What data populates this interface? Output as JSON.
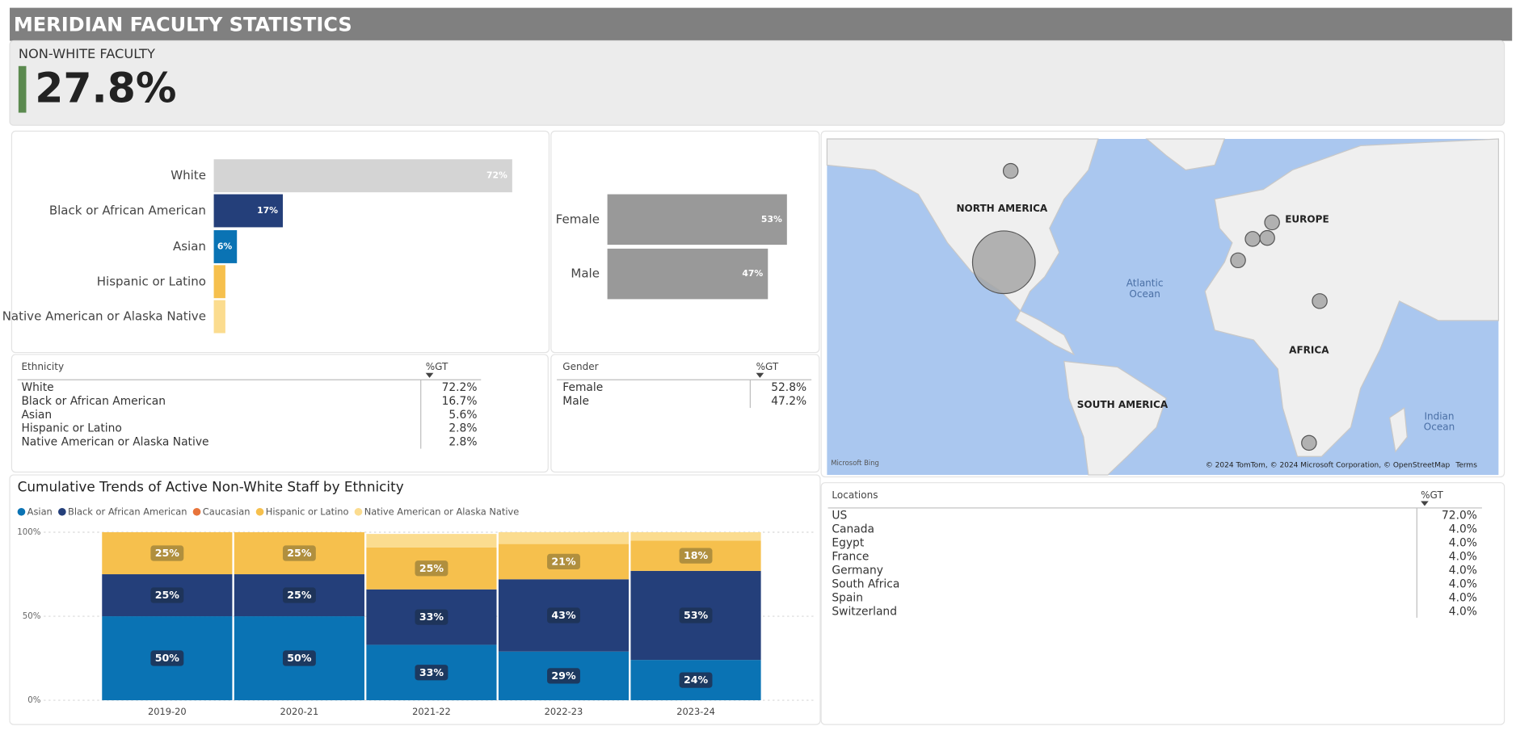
{
  "header": {
    "title": "MERIDIAN FACULTY STATISTICS"
  },
  "kpi": {
    "label": "NON-WHITE FACULTY",
    "value": "27.8%"
  },
  "chart_data": [
    {
      "type": "hbar",
      "categories": [
        "White",
        "Black or African American",
        "Asian",
        "Hispanic or Latino",
        "Native American or Alaska Native"
      ],
      "values": [
        72.2,
        16.7,
        5.6,
        2.8,
        2.8
      ],
      "value_labels": [
        "72%",
        "17%",
        "6%",
        null,
        null
      ],
      "colors": [
        "#d4d4d4",
        "#243f7a",
        "#0a73b4",
        "#f6c04d",
        "#fbdc8f"
      ],
      "xlim": [
        0,
        75
      ]
    },
    {
      "type": "hbar",
      "categories": [
        "Female",
        "Male"
      ],
      "values": [
        52.8,
        47.2
      ],
      "value_labels": [
        "53%",
        "47%"
      ],
      "colors": [
        "#999999",
        "#999999"
      ],
      "xlim": [
        0,
        55
      ]
    },
    {
      "type": "stacked-column",
      "title": "Cumulative Trends of Active Non-White Staff by Ethnicity",
      "categories": [
        "2019-20",
        "2020-21",
        "2021-22",
        "2022-23",
        "2023-24"
      ],
      "series": [
        {
          "name": "Asian",
          "color": "#0a73b4",
          "values": [
            50,
            50,
            33,
            29,
            24
          ],
          "value_labels": [
            "50%",
            "50%",
            "33%",
            "29%",
            "24%"
          ]
        },
        {
          "name": "Black or African American",
          "color": "#243f7a",
          "values": [
            25,
            25,
            33,
            43,
            53
          ],
          "value_labels": [
            "25%",
            "25%",
            "33%",
            "43%",
            "53%"
          ]
        },
        {
          "name": "Caucasian",
          "color": "#e8743b",
          "values": [
            0,
            0,
            0,
            0,
            0
          ],
          "value_labels": [
            null,
            null,
            null,
            null,
            null
          ]
        },
        {
          "name": "Hispanic or Latino",
          "color": "#f6c04d",
          "values": [
            25,
            25,
            25,
            21,
            18
          ],
          "value_labels": [
            "25%",
            "25%",
            "25%",
            "21%",
            "18%"
          ]
        },
        {
          "name": "Native American or Alaska Native",
          "color": "#fbdc8f",
          "values": [
            0,
            0,
            8,
            7,
            5
          ],
          "value_labels": [
            null,
            null,
            null,
            null,
            null
          ]
        }
      ],
      "ylim": [
        0,
        100
      ],
      "yticks": [
        {
          "value": 0,
          "label": "0%"
        },
        {
          "value": 50,
          "label": "50%"
        },
        {
          "value": 100,
          "label": "100%"
        }
      ],
      "grid": true
    },
    {
      "type": "bubble-map",
      "categories": [
        "US",
        "Canada",
        "Egypt",
        "France",
        "Germany",
        "South Africa",
        "Spain",
        "Switzerland"
      ],
      "values": [
        72.0,
        4.0,
        4.0,
        4.0,
        4.0,
        4.0,
        4.0,
        4.0
      ],
      "color": "#a6a6a6"
    }
  ],
  "tables": {
    "ethnicity": {
      "header": [
        "Ethnicity",
        "%GT"
      ],
      "rows": [
        [
          "White",
          "72.2%"
        ],
        [
          "Black or African American",
          "16.7%"
        ],
        [
          "Asian",
          "5.6%"
        ],
        [
          "Hispanic or Latino",
          "2.8%"
        ],
        [
          "Native American or Alaska Native",
          "2.8%"
        ]
      ]
    },
    "gender": {
      "header": [
        "Gender",
        "%GT"
      ],
      "rows": [
        [
          "Female",
          "52.8%"
        ],
        [
          "Male",
          "47.2%"
        ]
      ]
    },
    "locations": {
      "header": [
        "Locations",
        "%GT"
      ],
      "rows": [
        [
          "US",
          "72.0%"
        ],
        [
          "Canada",
          "4.0%"
        ],
        [
          "Egypt",
          "4.0%"
        ],
        [
          "France",
          "4.0%"
        ],
        [
          "Germany",
          "4.0%"
        ],
        [
          "South Africa",
          "4.0%"
        ],
        [
          "Spain",
          "4.0%"
        ],
        [
          "Switzerland",
          "4.0%"
        ]
      ]
    }
  },
  "map": {
    "regions": [
      "NORTH AMERICA",
      "EUROPE",
      "AFRICA",
      "SOUTH AMERICA"
    ],
    "atlantic": [
      "Atlantic",
      "Ocean"
    ],
    "indian": [
      "Indian",
      "Ocean"
    ],
    "provider": "Microsoft Bing",
    "attribution": "© 2024 TomTom, © 2024 Microsoft Corporation, © OpenStreetMap",
    "terms": "Terms"
  }
}
